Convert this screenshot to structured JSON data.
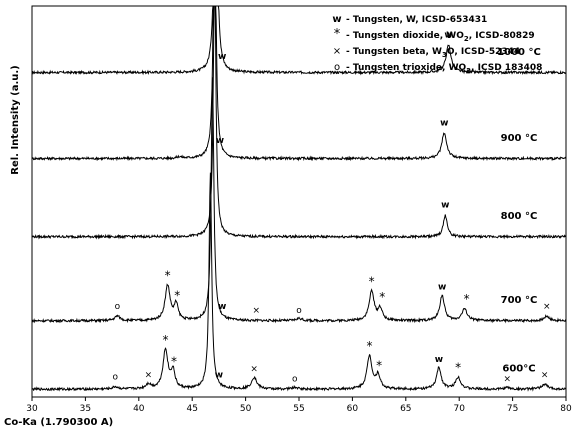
{
  "chart_data": {
    "type": "line",
    "xlabel": "Co-Ka (1.790300 A)",
    "ylabel": "Rel. Intensity (a.u.)",
    "xlim": [
      30,
      80
    ],
    "xticks": [
      30,
      35,
      40,
      45,
      50,
      55,
      60,
      65,
      70,
      75,
      80
    ],
    "grid": false,
    "legend_position": "top-right",
    "legend": [
      {
        "symbol": "w",
        "text": "Tungsten, W, ICSD-653431"
      },
      {
        "symbol": "*",
        "text": "Tungsten dioxide, WO",
        "sub": "2",
        "tail": ", ICSD-80829"
      },
      {
        "symbol": "×",
        "text": "Tungsten beta, W",
        "sub": "3",
        "tail": "O, ICSD-52344"
      },
      {
        "symbol": "o",
        "text": "Tungsten trioxide, WO",
        "sub": "3",
        "tail": ", ICSD 183408"
      }
    ],
    "series": [
      {
        "name": "1000 °C",
        "baseline": 0.83,
        "peaks": [
          [
            47.2,
            0.9,
            0.14
          ],
          [
            69.0,
            0.07,
            0.28
          ]
        ],
        "markers": [
          {
            "x": 47.8,
            "sym": "w",
            "h": 0.035
          },
          {
            "x": 69.0,
            "sym": "w",
            "h": 0.09
          }
        ]
      },
      {
        "name": "900 °C",
        "baseline": 0.61,
        "peaks": [
          [
            47.1,
            0.75,
            0.14
          ],
          [
            68.6,
            0.065,
            0.28
          ],
          [
            43.8,
            0.004,
            0.3
          ]
        ],
        "markers": [
          {
            "x": 47.6,
            "sym": "w",
            "h": 0.04
          },
          {
            "x": 68.6,
            "sym": "w",
            "h": 0.085
          }
        ]
      },
      {
        "name": "800 °C",
        "baseline": 0.41,
        "peaks": [
          [
            47.1,
            0.72,
            0.14
          ],
          [
            68.7,
            0.055,
            0.22
          ]
        ],
        "markers": [
          {
            "x": 68.7,
            "sym": "w",
            "h": 0.075
          }
        ]
      },
      {
        "name": "700 °C",
        "baseline": 0.195,
        "peaks": [
          [
            46.9,
            0.62,
            0.15
          ],
          [
            42.7,
            0.09,
            0.28
          ],
          [
            43.5,
            0.04,
            0.22
          ],
          [
            61.8,
            0.075,
            0.28
          ],
          [
            62.6,
            0.03,
            0.24
          ],
          [
            68.4,
            0.065,
            0.26
          ],
          [
            70.5,
            0.03,
            0.3
          ],
          [
            78.2,
            0.012,
            0.3
          ],
          [
            38.0,
            0.012,
            0.3
          ],
          [
            55.0,
            0.006,
            0.3
          ]
        ],
        "markers": [
          {
            "x": 42.7,
            "sym": "*",
            "h": 0.105
          },
          {
            "x": 43.6,
            "sym": "*",
            "h": 0.055
          },
          {
            "x": 38.0,
            "sym": "o",
            "h": 0.03
          },
          {
            "x": 47.8,
            "sym": "w",
            "h": 0.03
          },
          {
            "x": 51.0,
            "sym": "×",
            "h": 0.02
          },
          {
            "x": 55.0,
            "sym": "o",
            "h": 0.02
          },
          {
            "x": 61.8,
            "sym": "*",
            "h": 0.09
          },
          {
            "x": 62.8,
            "sym": "*",
            "h": 0.05
          },
          {
            "x": 68.4,
            "sym": "w",
            "h": 0.08
          },
          {
            "x": 70.7,
            "sym": "*",
            "h": 0.045
          },
          {
            "x": 78.2,
            "sym": "×",
            "h": 0.03
          }
        ]
      },
      {
        "name": "600°C",
        "baseline": 0.02,
        "peaks": [
          [
            46.7,
            0.55,
            0.15
          ],
          [
            42.5,
            0.1,
            0.28
          ],
          [
            43.2,
            0.045,
            0.22
          ],
          [
            50.8,
            0.03,
            0.3
          ],
          [
            61.6,
            0.085,
            0.28
          ],
          [
            62.4,
            0.035,
            0.24
          ],
          [
            68.1,
            0.055,
            0.26
          ],
          [
            69.9,
            0.03,
            0.3
          ],
          [
            40.9,
            0.012,
            0.3
          ],
          [
            37.8,
            0.006,
            0.3
          ],
          [
            54.6,
            0.004,
            0.3
          ],
          [
            78.0,
            0.012,
            0.35
          ],
          [
            74.5,
            0.004,
            0.3
          ]
        ],
        "markers": [
          {
            "x": 42.5,
            "sym": "*",
            "h": 0.115
          },
          {
            "x": 43.3,
            "sym": "*",
            "h": 0.06
          },
          {
            "x": 37.8,
            "sym": "o",
            "h": 0.025
          },
          {
            "x": 40.9,
            "sym": "×",
            "h": 0.03
          },
          {
            "x": 47.5,
            "sym": "w",
            "h": 0.03
          },
          {
            "x": 50.8,
            "sym": "×",
            "h": 0.045
          },
          {
            "x": 54.6,
            "sym": "o",
            "h": 0.02
          },
          {
            "x": 61.6,
            "sym": "*",
            "h": 0.1
          },
          {
            "x": 62.5,
            "sym": "*",
            "h": 0.05
          },
          {
            "x": 68.1,
            "sym": "w",
            "h": 0.07
          },
          {
            "x": 69.9,
            "sym": "*",
            "h": 0.045
          },
          {
            "x": 74.5,
            "sym": "×",
            "h": 0.02
          },
          {
            "x": 78.0,
            "sym": "×",
            "h": 0.03
          }
        ]
      }
    ]
  }
}
